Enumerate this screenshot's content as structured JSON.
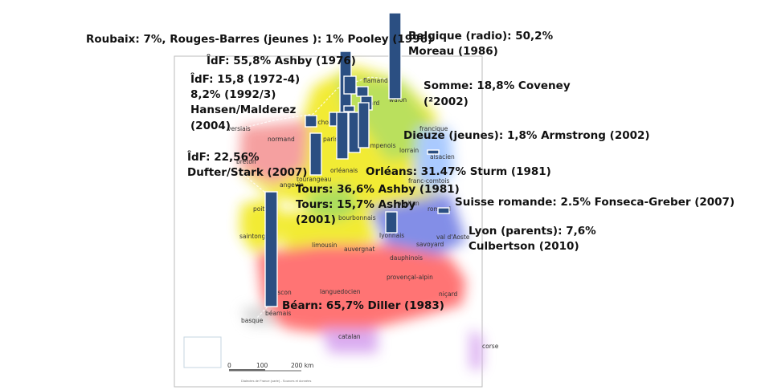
{
  "map": {
    "region_names": [
      "versiais",
      "flamand",
      "walon",
      "picard",
      "cauchois",
      "normand",
      "parisien",
      "champenois",
      "lorrain",
      "francique",
      "alsacien",
      "breton",
      "tourangeau",
      "orléanais",
      "angevin",
      "franc-comtois",
      "poitevin",
      "bourbonnais",
      "arpitan",
      "romand",
      "saintongeais",
      "limousin",
      "lyonnais",
      "savoyard",
      "val d'Aoste",
      "auvergnat",
      "dauphinois",
      "gascon",
      "languedocien",
      "provençal-alpin",
      "niçard",
      "béarnais",
      "basque",
      "catalan",
      "corse"
    ],
    "scale_labels": [
      "0",
      "100",
      "200 km"
    ],
    "source_caption": "Dialectes de France (carte) - Sources et données"
  },
  "bar_labels": [
    "Roubaix: 7%, Rouges-Barres (jeunes ): 1% Pooley (1996)",
    "ÎdF: 55,8% Ashby (1976)",
    "ÎdF: 15,8 (1972-4)",
    "8,2% (1992/3)",
    "Hansen/Malderez",
    "(2004)",
    "ÎdF: 22,56%",
    "Dufter/Stark (2007)",
    "Belgique (radio): 50,2%",
    "Moreau (1986)",
    "Somme: 18,8% Coveney",
    "(²2002)",
    "Dieuze (jeunes): 1,8% Armstrong (2002)",
    "Orléans: 31.47% Sturm (1981)",
    "Tours: 36,6% Ashby (1981)",
    "Tours: 15,7% Ashby",
    "(2001)",
    "Suisse romande: 2.5% Fonseca-Greber (2007)",
    "Lyon (parents): 7,6%",
    "Culbertson (2010)",
    "Béarn: 65,7% Diller (1983)"
  ],
  "colors": {
    "bar": "#2b4f82",
    "oil": "#f2ea2a",
    "oil_north": "#a8dd55",
    "occitan": "#ff7b7b",
    "francoprovencal": "#7d88e6",
    "breton": "#f59b9b",
    "corse": "#d8a8f0"
  }
}
